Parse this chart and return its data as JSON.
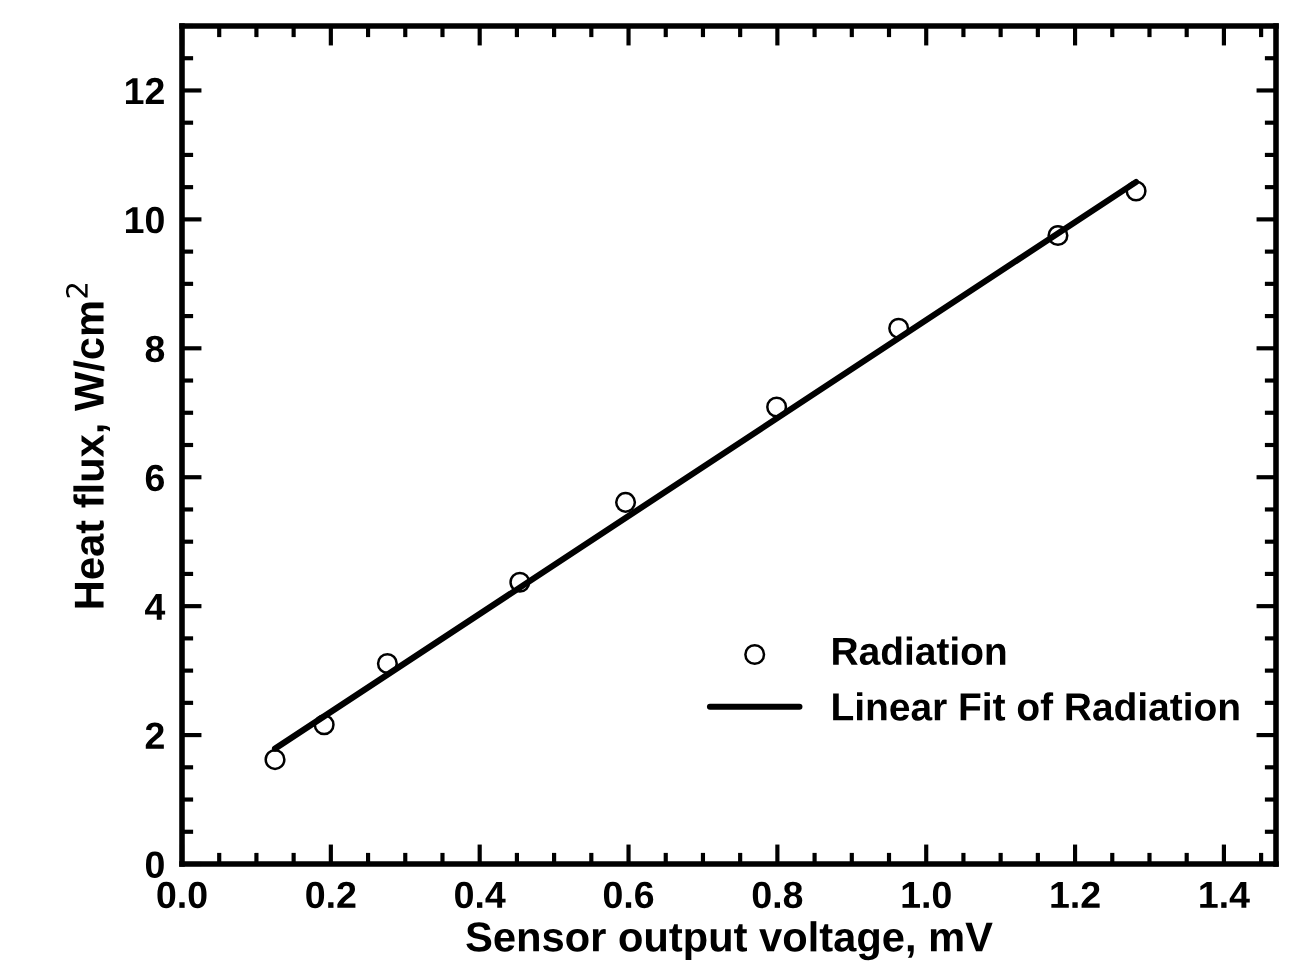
{
  "chart_data": {
    "type": "scatter",
    "xlabel": "Sensor output voltage, mV",
    "ylabel": "Heat flux, W/cm$^{2}$",
    "series": [
      {
        "name": "Radiation",
        "color": "#000000",
        "marker": "circle",
        "x": [
          0.125,
          0.191,
          0.276,
          0.454,
          0.596,
          0.799,
          0.963,
          1.177,
          1.282
        ],
        "values": [
          1.62,
          2.16,
          3.11,
          4.37,
          5.61,
          7.09,
          8.31,
          9.75,
          10.44
        ]
      },
      {
        "name": "Linear Fit of Radiation",
        "type": "line",
        "color": "#000000",
        "line_style": "solid",
        "marker": "none",
        "x": [
          0.125,
          1.282
        ],
        "values": [
          1.79,
          10.58
        ]
      }
    ],
    "xlim": [
      0,
      1.47
    ],
    "xticks": [
      {
        "value": 0,
        "label": "0.0"
      },
      0.2,
      0.4,
      0.6,
      0.8,
      {
        "value": 1,
        "label": "1.0"
      },
      1.2,
      1.4
    ],
    "ylim": [
      0,
      13
    ],
    "yticks": [
      0,
      2,
      4,
      6,
      8,
      10,
      12
    ],
    "grid": false,
    "legend": "bottom right"
  }
}
